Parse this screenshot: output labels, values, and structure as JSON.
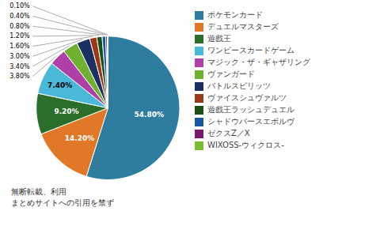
{
  "chart_data": {
    "type": "pie",
    "categories": [
      "ポケモンカード",
      "デュエルマスターズ",
      "遊戲王",
      "ワンピースカードゲーム",
      "マジック・ザ・ギャザリング",
      "ヴァンガード",
      "バトルスピリッツ",
      "ヴァイスシュヴァルツ",
      "遊戲王ラッシュデュエル",
      "シャドウバースエボルヴ",
      "ゼクスZ／X",
      "WIXOSS-ウィクロス-"
    ],
    "values": [
      54.8,
      14.2,
      9.2,
      7.4,
      3.8,
      3.4,
      3.0,
      1.6,
      1.2,
      0.8,
      0.4,
      0.1
    ],
    "value_labels": [
      "54.80%",
      "14.20%",
      "9.20%",
      "7.40%",
      "3.80%",
      "3.40%",
      "3.00%",
      "1.60%",
      "1.20%",
      "0.80%",
      "0.40%",
      "0.10%"
    ],
    "colors": [
      "#2e7d9e",
      "#e07828",
      "#2a6e2a",
      "#4ab8d8",
      "#b040a8",
      "#70b030",
      "#1a3060",
      "#9a3818",
      "#1a5018",
      "#1858a0",
      "#781870",
      "#78c030"
    ],
    "data_labels": true,
    "legend": "right",
    "annotations": [
      "無断転載、利用",
      "まとめサイトへの引用を禁ず"
    ]
  }
}
